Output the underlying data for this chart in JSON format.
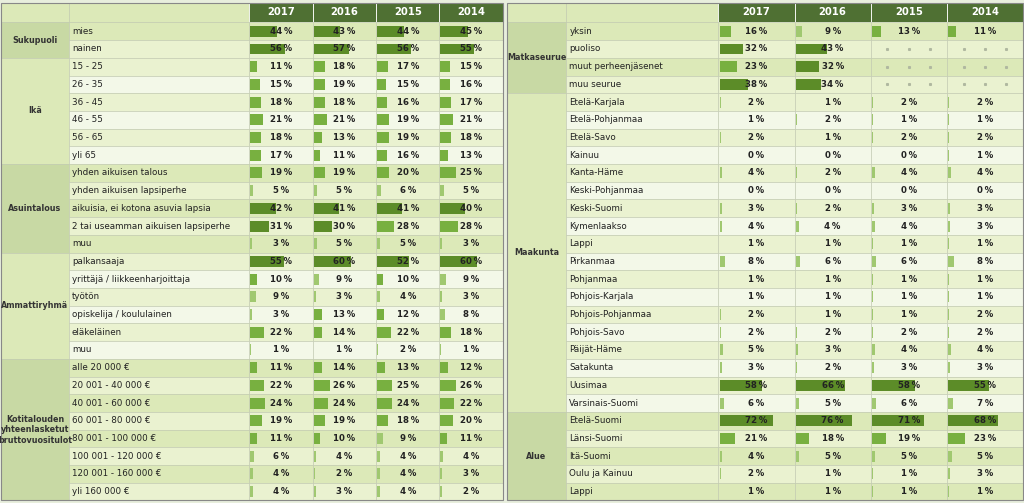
{
  "years": [
    "2017",
    "2016",
    "2015",
    "2014"
  ],
  "left_table": {
    "groups": [
      {
        "group_label": "Sukupuoli",
        "rows": [
          {
            "label": "mies",
            "values": [
              44,
              43,
              44,
              45
            ]
          },
          {
            "label": "nainen",
            "values": [
              56,
              57,
              56,
              55
            ]
          }
        ]
      },
      {
        "group_label": "Ikä",
        "rows": [
          {
            "label": "15 - 25",
            "values": [
              11,
              18,
              17,
              15
            ]
          },
          {
            "label": "26 - 35",
            "values": [
              15,
              19,
              15,
              16
            ]
          },
          {
            "label": "36 - 45",
            "values": [
              18,
              18,
              16,
              17
            ]
          },
          {
            "label": "46 - 55",
            "values": [
              21,
              21,
              19,
              21
            ]
          },
          {
            "label": "56 - 65",
            "values": [
              18,
              13,
              19,
              18
            ]
          },
          {
            "label": "yli 65",
            "values": [
              17,
              11,
              16,
              13
            ]
          }
        ]
      },
      {
        "group_label": "Asuintalous",
        "rows": [
          {
            "label": "yhden aikuisen talous",
            "values": [
              19,
              19,
              20,
              25
            ]
          },
          {
            "label": "yhden aikuisen lapsiperhe",
            "values": [
              5,
              5,
              6,
              5
            ]
          },
          {
            "label": "aikuisia, ei kotona asuvia lapsia",
            "values": [
              42,
              41,
              41,
              40
            ]
          },
          {
            "label": "2 tai useamman aikuisen lapsiperhe",
            "values": [
              31,
              30,
              28,
              28
            ]
          },
          {
            "label": "muu",
            "values": [
              3,
              5,
              5,
              3
            ]
          }
        ]
      },
      {
        "group_label": "Ammattiryhmä",
        "rows": [
          {
            "label": "palkansaaja",
            "values": [
              55,
              60,
              52,
              60
            ]
          },
          {
            "label": "yrittäjä / liikkeenharjoittaja",
            "values": [
              10,
              9,
              10,
              9
            ]
          },
          {
            "label": "työtön",
            "values": [
              9,
              3,
              4,
              3
            ]
          },
          {
            "label": "opiskelija / koululainen",
            "values": [
              3,
              13,
              12,
              8
            ]
          },
          {
            "label": "eläkeläinen",
            "values": [
              22,
              14,
              22,
              18
            ]
          },
          {
            "label": "muu",
            "values": [
              1,
              1,
              2,
              1
            ]
          }
        ]
      },
      {
        "group_label": "Kotitalouden\nyhteenlasketut\nbruttovuositulot",
        "rows": [
          {
            "label": "alle 20 000 €",
            "values": [
              11,
              14,
              13,
              12
            ]
          },
          {
            "label": "20 001 - 40 000 €",
            "values": [
              22,
              26,
              25,
              26
            ]
          },
          {
            "label": "40 001 - 60 000 €",
            "values": [
              24,
              24,
              24,
              22
            ]
          },
          {
            "label": "60 001 - 80 000 €",
            "values": [
              19,
              19,
              18,
              20
            ]
          },
          {
            "label": "80 001 - 100 000 €",
            "values": [
              11,
              10,
              9,
              11
            ]
          },
          {
            "label": "100 001 - 120 000 €",
            "values": [
              6,
              4,
              4,
              4
            ]
          },
          {
            "label": "120 001 - 160 000 €",
            "values": [
              4,
              2,
              4,
              3
            ]
          },
          {
            "label": "yli 160 000 €",
            "values": [
              4,
              3,
              4,
              2
            ]
          }
        ]
      }
    ]
  },
  "right_table": {
    "groups": [
      {
        "group_label": "Matkaseurue",
        "rows": [
          {
            "label": "yksin",
            "values": [
              16,
              9,
              13,
              11
            ]
          },
          {
            "label": "puoliso",
            "values": [
              32,
              43,
              null,
              null
            ]
          },
          {
            "label": "muut perheenjäsenet",
            "values": [
              23,
              32,
              null,
              null
            ]
          },
          {
            "label": "muu seurue",
            "values": [
              38,
              34,
              null,
              null
            ]
          }
        ]
      },
      {
        "group_label": "Maakunta",
        "rows": [
          {
            "label": "Etelä-Karjala",
            "values": [
              2,
              1,
              2,
              2
            ]
          },
          {
            "label": "Etelä-Pohjanmaa",
            "values": [
              1,
              2,
              1,
              1
            ]
          },
          {
            "label": "Etelä-Savo",
            "values": [
              2,
              1,
              2,
              2
            ]
          },
          {
            "label": "Kainuu",
            "values": [
              0,
              0,
              0,
              1
            ]
          },
          {
            "label": "Kanta-Häme",
            "values": [
              4,
              2,
              4,
              4
            ]
          },
          {
            "label": "Keski-Pohjanmaa",
            "values": [
              0,
              0,
              0,
              0
            ]
          },
          {
            "label": "Keski-Suomi",
            "values": [
              3,
              2,
              3,
              3
            ]
          },
          {
            "label": "Kymenlaakso",
            "values": [
              4,
              4,
              4,
              3
            ]
          },
          {
            "label": "Lappi",
            "values": [
              1,
              1,
              1,
              1
            ]
          },
          {
            "label": "Pirkanmaa",
            "values": [
              8,
              6,
              6,
              8
            ]
          },
          {
            "label": "Pohjanmaa",
            "values": [
              1,
              1,
              1,
              1
            ]
          },
          {
            "label": "Pohjois-Karjala",
            "values": [
              1,
              1,
              1,
              1
            ]
          },
          {
            "label": "Pohjois-Pohjanmaa",
            "values": [
              2,
              1,
              1,
              2
            ]
          },
          {
            "label": "Pohjois-Savo",
            "values": [
              2,
              2,
              2,
              2
            ]
          },
          {
            "label": "Päijät-Häme",
            "values": [
              5,
              3,
              4,
              4
            ]
          },
          {
            "label": "Satakunta",
            "values": [
              3,
              2,
              3,
              3
            ]
          },
          {
            "label": "Uusimaa",
            "values": [
              58,
              66,
              58,
              55
            ]
          },
          {
            "label": "Varsinais-Suomi",
            "values": [
              6,
              5,
              6,
              7
            ]
          }
        ]
      },
      {
        "group_label": "Alue",
        "rows": [
          {
            "label": "Etelä-Suomi",
            "values": [
              72,
              76,
              71,
              68
            ]
          },
          {
            "label": "Länsi-Suomi",
            "values": [
              21,
              18,
              19,
              23
            ]
          },
          {
            "label": "Itä-Suomi",
            "values": [
              4,
              5,
              5,
              5
            ]
          },
          {
            "label": "Oulu ja Kainuu",
            "values": [
              2,
              1,
              1,
              3
            ]
          },
          {
            "label": "Lappi",
            "values": [
              1,
              1,
              1,
              1
            ]
          }
        ]
      }
    ]
  }
}
